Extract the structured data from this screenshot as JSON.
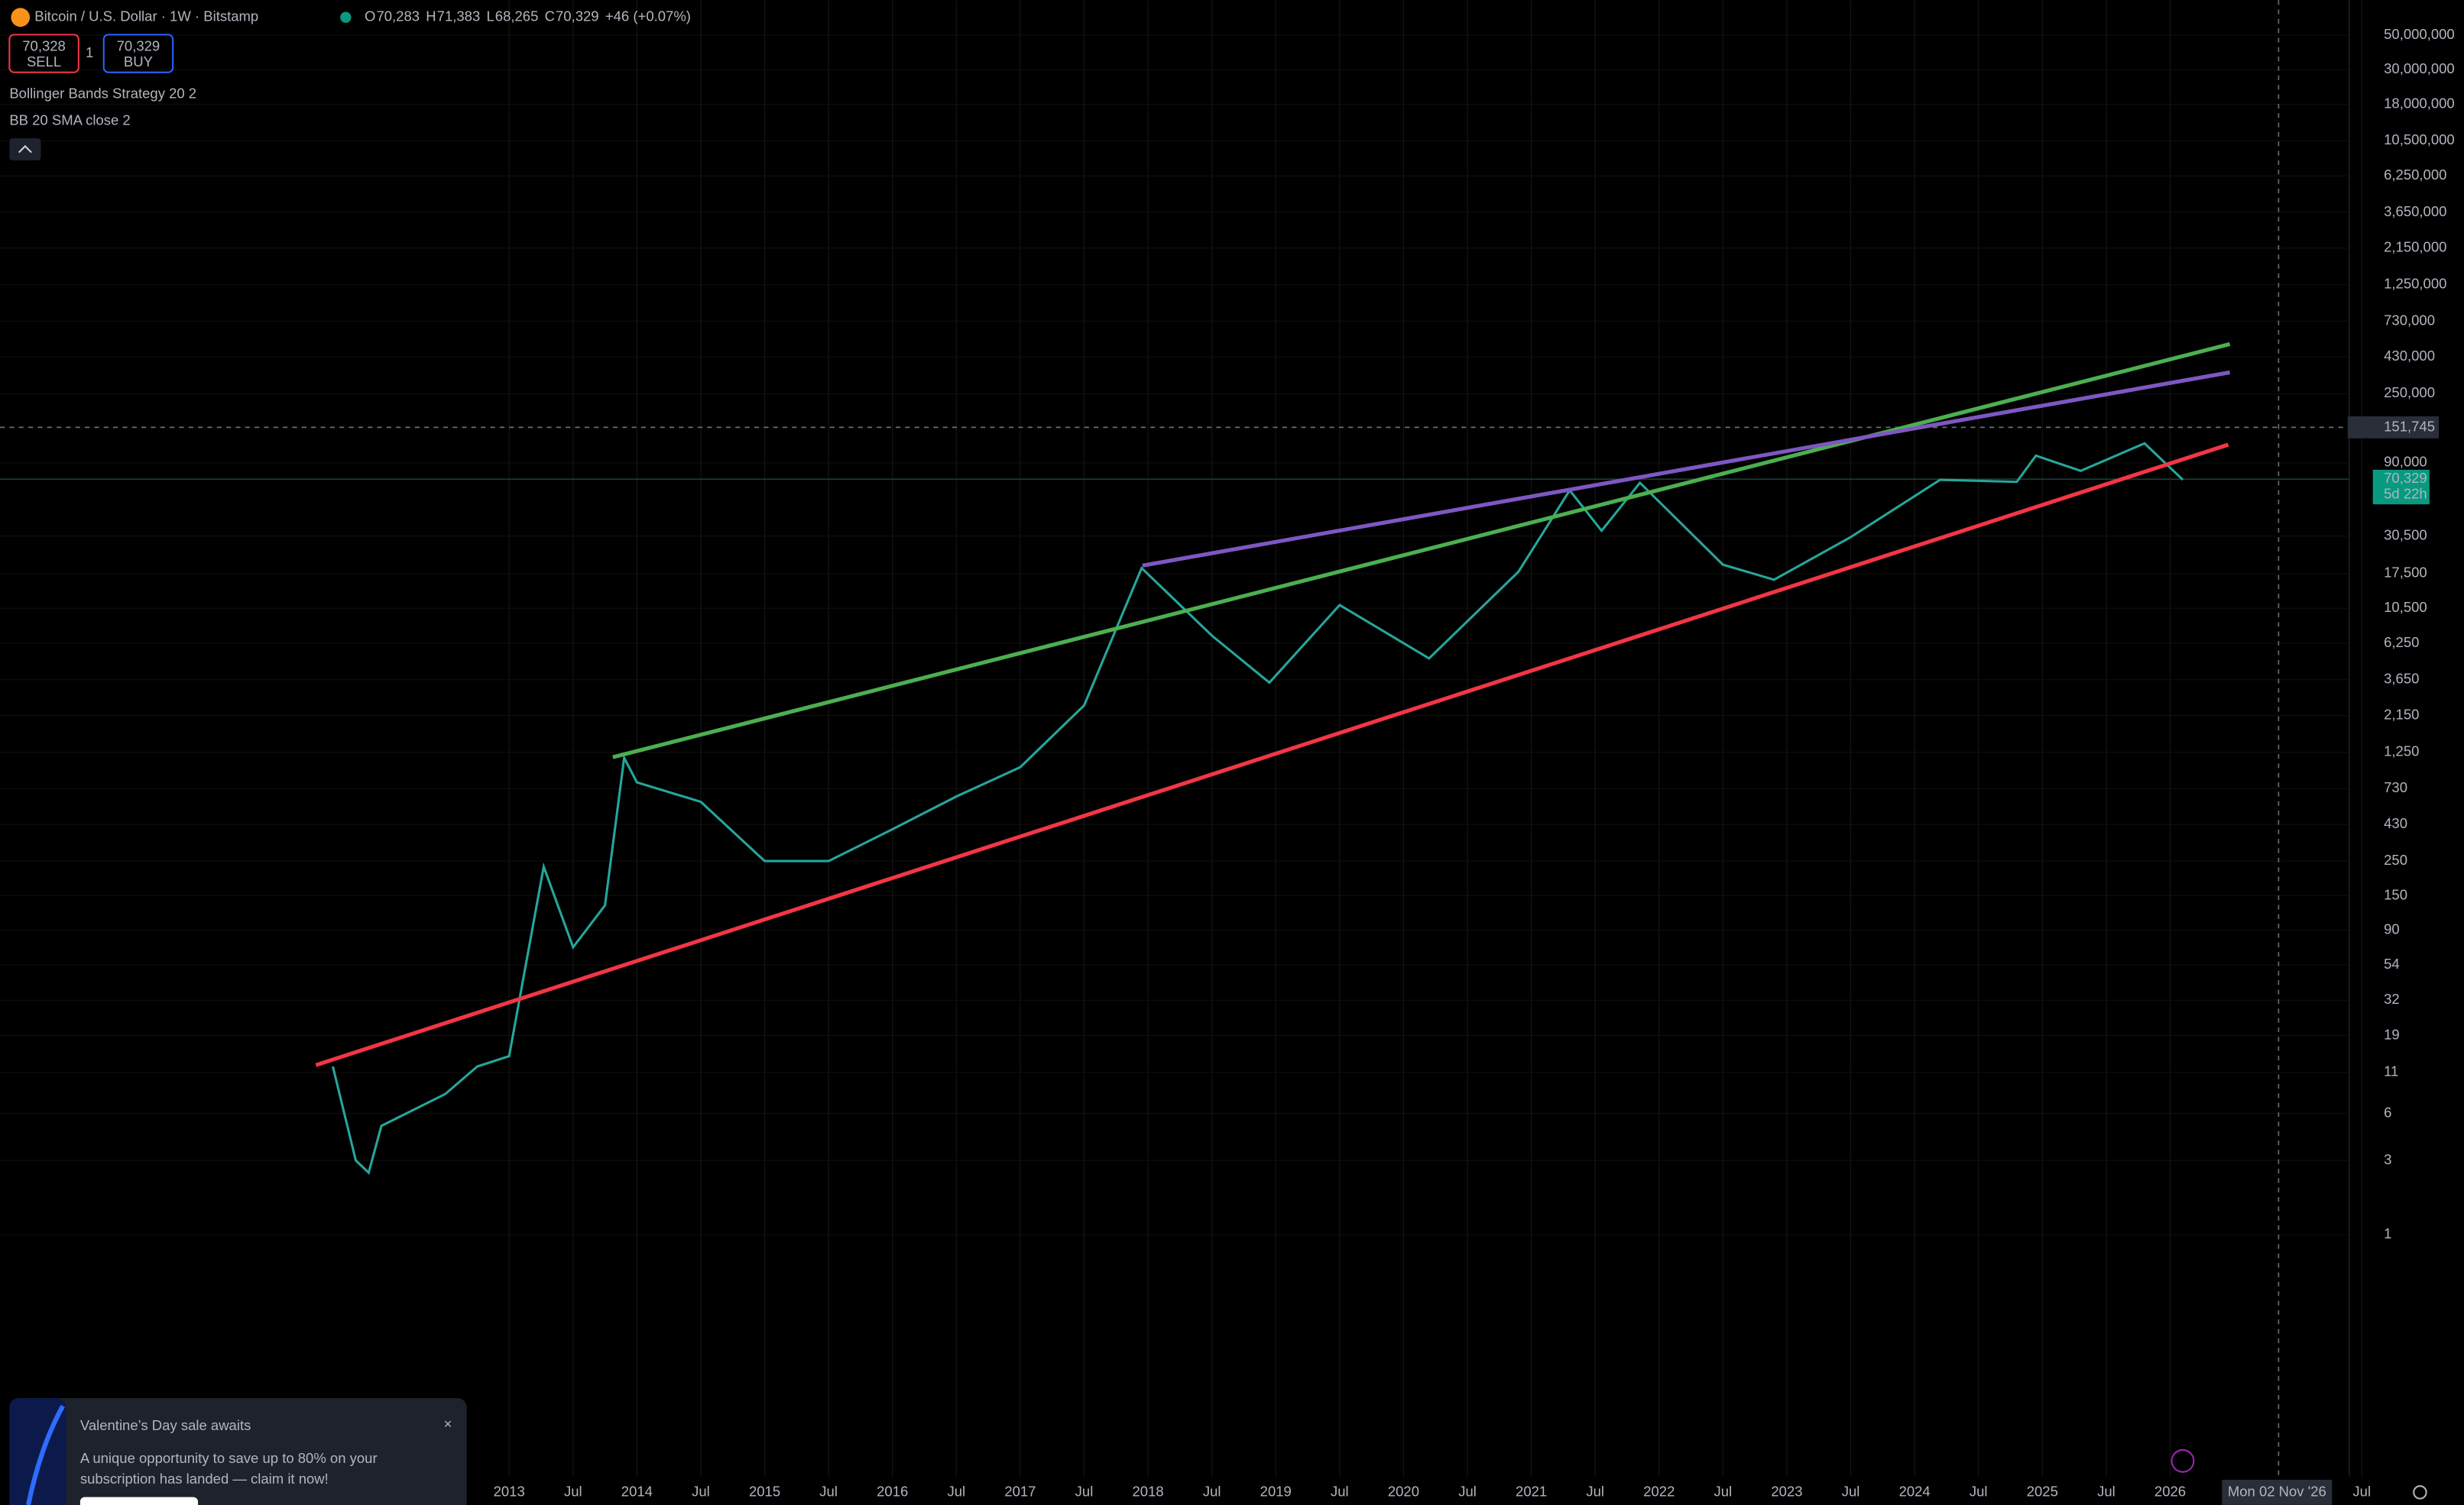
{
  "header": {
    "symbol": "Bitcoin / U.S. Dollar · 1W · Bitstamp",
    "ohlc": [
      {
        "key": "O",
        "value": "70,283"
      },
      {
        "key": "H",
        "value": "71,383"
      },
      {
        "key": "L",
        "value": "68,265"
      },
      {
        "key": "C",
        "value": "70,329"
      }
    ],
    "change": "+46 (+0.07%)",
    "sell": {
      "price": "70,328",
      "label": "SELL"
    },
    "buy": {
      "price": "70,329",
      "label": "BUY"
    },
    "indicators": [
      "Bollinger Bands Strategy 20 2",
      "BB 20 SMA close 2"
    ]
  },
  "chart": {
    "type": "line",
    "log_scale": true,
    "xlim": [
      2009.015,
      2028.3
    ],
    "ylim": [
      0.028,
      84000000
    ],
    "yticks": [
      {
        "value": 50000000,
        "label": "50,000,000"
      },
      {
        "value": 30000000,
        "label": "30,000,000"
      },
      {
        "value": 18000000,
        "label": "18,000,000"
      },
      {
        "value": 10500000,
        "label": "10,500,000"
      },
      {
        "value": 6250000,
        "label": "6,250,000"
      },
      {
        "value": 3650000,
        "label": "3,650,000"
      },
      {
        "value": 2150000,
        "label": "2,150,000"
      },
      {
        "value": 1250000,
        "label": "1,250,000"
      },
      {
        "value": 730000,
        "label": "730,000"
      },
      {
        "value": 430000,
        "label": "430,000"
      },
      {
        "value": 250000,
        "label": "250,000"
      },
      {
        "value": 90000,
        "label": "90,000"
      },
      {
        "value": 30500,
        "label": "30,500"
      },
      {
        "value": 17500,
        "label": "17,500"
      },
      {
        "value": 10500,
        "label": "10,500"
      },
      {
        "value": 6250,
        "label": "6,250"
      },
      {
        "value": 3650,
        "label": "3,650"
      },
      {
        "value": 2150,
        "label": "2,150"
      },
      {
        "value": 1250,
        "label": "1,250"
      },
      730,
      430,
      250,
      150,
      90,
      54,
      32,
      19,
      11,
      6,
      3,
      1
    ],
    "xticks": [
      2013,
      {
        "value": 2013.5,
        "label": "Jul"
      },
      2014,
      {
        "value": 2014.5,
        "label": "Jul"
      },
      2015,
      {
        "value": 2015.5,
        "label": "Jul"
      },
      2016,
      {
        "value": 2016.5,
        "label": "Jul"
      },
      2017,
      {
        "value": 2017.5,
        "label": "Jul"
      },
      2018,
      {
        "value": 2018.5,
        "label": "Jul"
      },
      2019,
      {
        "value": 2019.5,
        "label": "Jul"
      },
      2020,
      {
        "value": 2020.5,
        "label": "Jul"
      },
      2021,
      {
        "value": 2021.5,
        "label": "Jul"
      },
      2022,
      {
        "value": 2022.5,
        "label": "Jul"
      },
      2023,
      {
        "value": 2023.5,
        "label": "Jul"
      },
      2024,
      {
        "value": 2024.5,
        "label": "Jul"
      },
      2025,
      {
        "value": 2025.5,
        "label": "Jul"
      },
      2026,
      {
        "value": 2027.5,
        "label": "Jul"
      }
    ],
    "price": {
      "color": "#26a69a",
      "x": [
        2011.62,
        2011.8,
        2011.9,
        2012.0,
        2012.5,
        2012.75,
        2013.0,
        2013.27,
        2013.5,
        2013.75,
        2013.9,
        2014.0,
        2014.5,
        2015.0,
        2015.5,
        2016.0,
        2016.5,
        2017.0,
        2017.5,
        2017.95,
        2018.5,
        2018.95,
        2019.5,
        2020.2,
        2020.9,
        2021.3,
        2021.55,
        2021.85,
        2022.5,
        2022.9,
        2023.5,
        2024.2,
        2024.8,
        2024.95,
        2025.3,
        2025.8,
        2026.1
      ],
      "values": [
        12,
        3,
        2.5,
        5,
        8,
        12,
        14,
        230,
        70,
        130,
        1150,
        800,
        600,
        250,
        250,
        400,
        650,
        1000,
        2500,
        19000,
        7000,
        3500,
        11000,
        5000,
        18000,
        60000,
        33000,
        67000,
        20000,
        16000,
        30000,
        70000,
        68000,
        100000,
        80000,
        120000,
        70000
      ]
    },
    "crosshair": {
      "price": "151,745",
      "date": "Mon 02 Nov '26"
    },
    "last_price": {
      "price": "70,329",
      "countdown": "5d 22h"
    }
  },
  "promo": {
    "title": "Valentine’s Day sale awaits",
    "body": [
      "A unique opportunity to save up to 80% on your",
      "subscription has landed — claim it now!"
    ]
  }
}
